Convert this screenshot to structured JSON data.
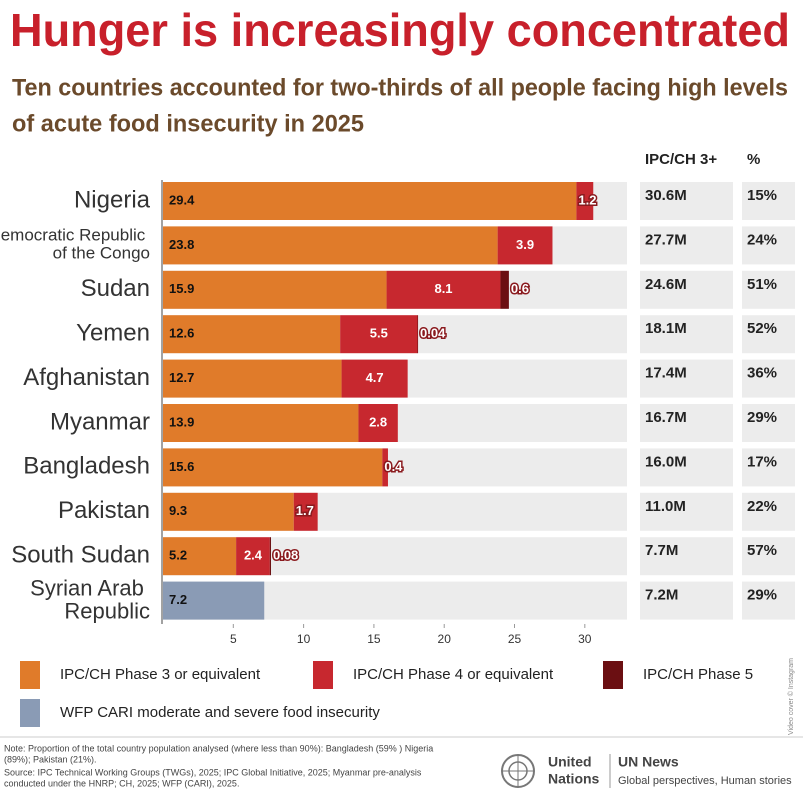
{
  "chart_data": {
    "type": "stacked-barh",
    "title": "Hunger is increasingly concentrated",
    "subtitle_lines": [
      "Ten countries accounted for two-thirds of all people facing high levels",
      "of acute food insecurity in 2025"
    ],
    "categories": [
      "Nigeria",
      "Democratic Republic of the Congo",
      "Sudan",
      "Yemen",
      "Afghanistan",
      "Myanmar",
      "Bangladesh",
      "Pakistan",
      "South Sudan",
      "Syrian Arab Republic"
    ],
    "series": [
      {
        "name": "IPC/CH Phase 3 or equivalent",
        "color": "#e07b2a",
        "values": [
          29.4,
          23.8,
          15.9,
          12.6,
          12.7,
          13.9,
          15.6,
          9.3,
          5.2,
          null
        ]
      },
      {
        "name": "IPC/CH Phase 4 or equivalent",
        "color": "#c7282f",
        "values": [
          1.2,
          3.9,
          8.1,
          5.5,
          4.7,
          2.8,
          0.4,
          1.7,
          2.4,
          null
        ]
      },
      {
        "name": "IPC/CH Phase 5",
        "color": "#6b0f12",
        "values": [
          null,
          null,
          0.6,
          0.04,
          null,
          null,
          null,
          null,
          0.08,
          null
        ]
      },
      {
        "name": "WFP CARI moderate and severe food insecurity",
        "color": "#8a9bb5",
        "values": [
          null,
          null,
          null,
          null,
          null,
          null,
          null,
          null,
          null,
          7.2
        ]
      }
    ],
    "xlim": [
      0,
      33
    ],
    "xticks": [
      5,
      10,
      15,
      20,
      25,
      30
    ],
    "table": {
      "headers": [
        "IPC/CH 3+",
        "%"
      ],
      "rows": [
        [
          "30.6M",
          "15%"
        ],
        [
          "27.7M",
          "24%"
        ],
        [
          "24.6M",
          "51%"
        ],
        [
          "18.1M",
          "52%"
        ],
        [
          "17.4M",
          "36%"
        ],
        [
          "16.7M",
          "29%"
        ],
        [
          "16.0M",
          "17%"
        ],
        [
          "11.0M",
          "22%"
        ],
        [
          "7.7M",
          "57%"
        ],
        [
          "7.2M",
          "29%"
        ]
      ]
    },
    "note_lines": [
      "Note: Proportion of the total country population analysed (where less than 90%): Bangladesh (59% ) Nigeria",
      "(89%); Pakistan (21%).",
      "Source: IPC Technical Working Groups (TWGs), 2025; IPC Global Initiative, 2025; Myanmar pre-analysis",
      "conducted under the HNRP; CH, 2025; WFP (CARI), 2025."
    ],
    "logo_un": [
      "United",
      "Nations"
    ],
    "logo_news": "UN News",
    "logo_tagline": "Global perspectives, Human stories",
    "credit": "Video cover © Instagram"
  }
}
